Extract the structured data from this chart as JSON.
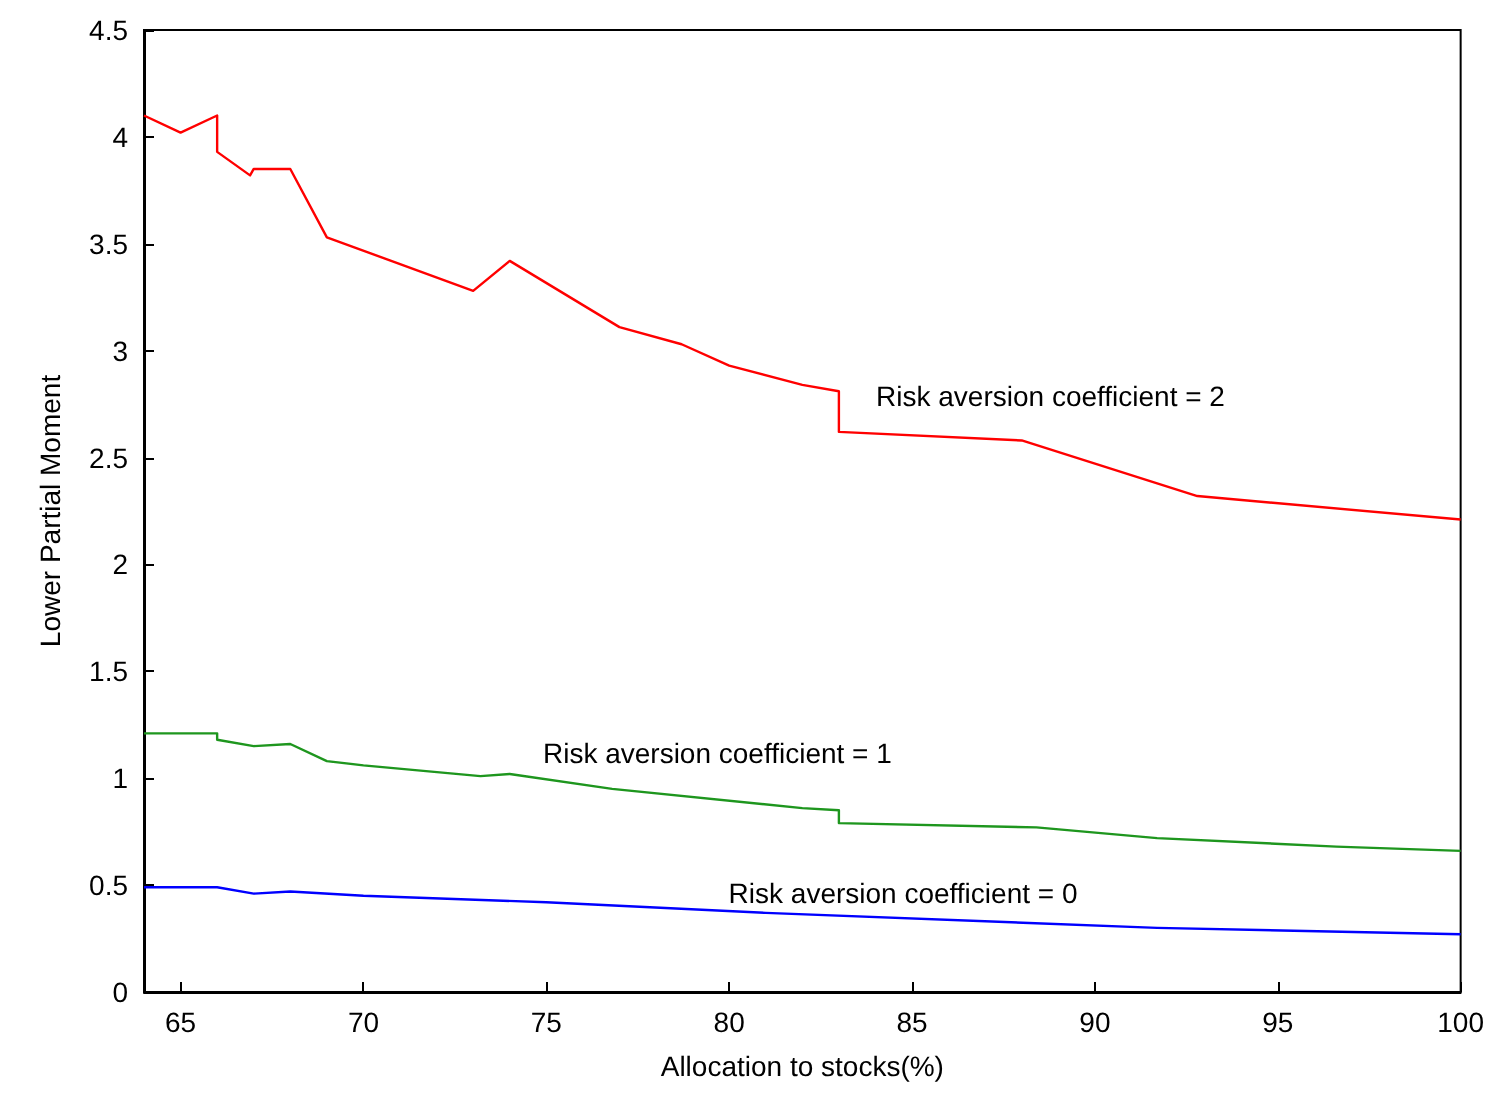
{
  "chart_data": {
    "type": "line",
    "xlabel": "Allocation to stocks(%)",
    "ylabel": "Lower Partial Moment",
    "xlim": [
      64,
      100
    ],
    "xticks": [
      65,
      70,
      75,
      80,
      85,
      90,
      95,
      100
    ],
    "ylim": [
      0,
      4.5
    ],
    "yticks": [
      0,
      0.5,
      1,
      1.5,
      2,
      2.5,
      3,
      3.5,
      4,
      4.5
    ],
    "grid": false,
    "legend": false,
    "marker": "none",
    "line_style": "solid",
    "series": [
      {
        "name": "Risk aversion coefficient = 2",
        "color": "#ff0000",
        "x": [
          64,
          65,
          66,
          66,
          66.9,
          67,
          68,
          69,
          73,
          74,
          77,
          78.7,
          80,
          82,
          83,
          83,
          88,
          92.8,
          100
        ],
        "values": [
          4.1,
          4.02,
          4.1,
          3.93,
          3.82,
          3.85,
          3.85,
          3.53,
          3.28,
          3.42,
          3.11,
          3.03,
          2.93,
          2.84,
          2.81,
          2.62,
          2.58,
          2.32,
          2.21
        ]
      },
      {
        "name": "Risk aversion coefficient = 1",
        "color": "#1e961e",
        "x": [
          64,
          66,
          66,
          67,
          68,
          69,
          70,
          73.2,
          74,
          76.8,
          82,
          83,
          83,
          88.4,
          91.7,
          96.6,
          100
        ],
        "values": [
          1.21,
          1.21,
          1.18,
          1.15,
          1.16,
          1.08,
          1.06,
          1.01,
          1.02,
          0.95,
          0.86,
          0.85,
          0.79,
          0.77,
          0.72,
          0.68,
          0.66
        ]
      },
      {
        "name": "Risk aversion coefficient = 0",
        "color": "#0000ff",
        "x": [
          64,
          66,
          67,
          68,
          70,
          75,
          81,
          91.7,
          100
        ],
        "values": [
          0.49,
          0.49,
          0.46,
          0.47,
          0.45,
          0.42,
          0.37,
          0.3,
          0.27
        ]
      }
    ]
  }
}
